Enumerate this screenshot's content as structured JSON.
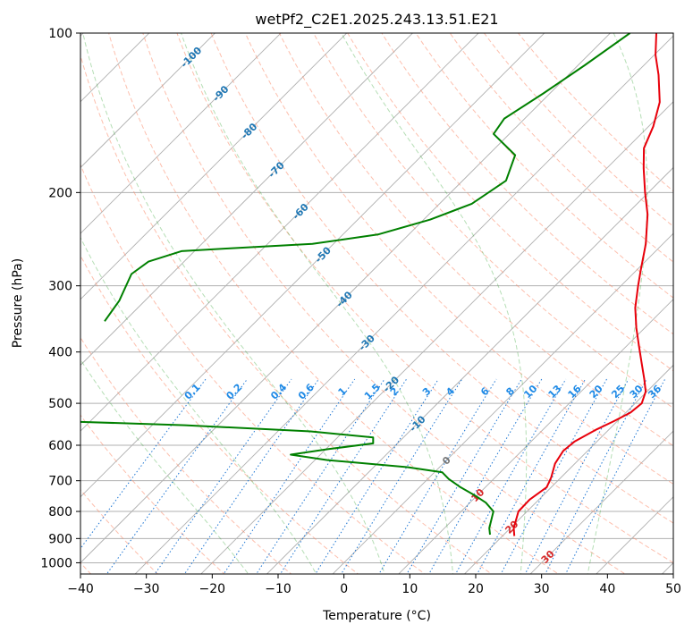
{
  "chart_data": {
    "type": "line",
    "subtype": "skew-t log-p diagram",
    "title": "wetPf2_C2E1.2025.243.13.51.E21",
    "xlabel": "Temperature (°C)",
    "ylabel": "Pressure (hPa)",
    "xlim": [
      -40,
      50
    ],
    "ylim": [
      1050,
      100
    ],
    "x_ticks": [
      -40,
      -30,
      -20,
      -10,
      0,
      10,
      20,
      30,
      40,
      50
    ],
    "x_tick_labels": [
      "−40",
      "−30",
      "−20",
      "−10",
      "0",
      "10",
      "20",
      "30",
      "40",
      "50"
    ],
    "y_ticks": [
      100,
      200,
      300,
      400,
      500,
      600,
      700,
      800,
      900,
      1000
    ],
    "y_tick_labels": [
      "100",
      "200",
      "300",
      "400",
      "500",
      "600",
      "700",
      "800",
      "900",
      "1000"
    ],
    "grid": true,
    "series": [
      {
        "name": "Temperature",
        "color": "#e8000b",
        "points": [
          {
            "p": 890,
            "t": 21.8
          },
          {
            "p": 860,
            "t": 20.5
          },
          {
            "p": 800,
            "t": 18.7
          },
          {
            "p": 760,
            "t": 18.6
          },
          {
            "p": 720,
            "t": 19.3
          },
          {
            "p": 690,
            "t": 18.5
          },
          {
            "p": 650,
            "t": 17.0
          },
          {
            "p": 615,
            "t": 16.3
          },
          {
            "p": 590,
            "t": 16.6
          },
          {
            "p": 560,
            "t": 18.1
          },
          {
            "p": 540,
            "t": 19.5
          },
          {
            "p": 520,
            "t": 20.7
          },
          {
            "p": 500,
            "t": 21.0
          },
          {
            "p": 475,
            "t": 19.8
          },
          {
            "p": 450,
            "t": 17.7
          },
          {
            "p": 420,
            "t": 14.9
          },
          {
            "p": 390,
            "t": 11.9
          },
          {
            "p": 360,
            "t": 8.7
          },
          {
            "p": 330,
            "t": 5.5
          },
          {
            "p": 300,
            "t": 2.6
          },
          {
            "p": 280,
            "t": 0.6
          },
          {
            "p": 250,
            "t": -2.6
          },
          {
            "p": 220,
            "t": -6.8
          },
          {
            "p": 200,
            "t": -10.5
          },
          {
            "p": 180,
            "t": -14.4
          },
          {
            "p": 165,
            "t": -17.4
          },
          {
            "p": 150,
            "t": -19.3
          },
          {
            "p": 135,
            "t": -22.0
          },
          {
            "p": 120,
            "t": -26.3
          },
          {
            "p": 110,
            "t": -29.8
          },
          {
            "p": 100,
            "t": -33.0
          }
        ]
      },
      {
        "name": "Dewpoint",
        "color": "#008000",
        "points": [
          {
            "p": 885,
            "t": 17.9
          },
          {
            "p": 860,
            "t": 16.8
          },
          {
            "p": 800,
            "t": 14.9
          },
          {
            "p": 770,
            "t": 12.4
          },
          {
            "p": 745,
            "t": 9.5
          },
          {
            "p": 720,
            "t": 6.2
          },
          {
            "p": 695,
            "t": 3.2
          },
          {
            "p": 675,
            "t": 1.2
          },
          {
            "p": 660,
            "t": -4.9
          },
          {
            "p": 640,
            "t": -18.1
          },
          {
            "p": 625,
            "t": -24.5
          },
          {
            "p": 610,
            "t": -19.6
          },
          {
            "p": 595,
            "t": -13.7
          },
          {
            "p": 580,
            "t": -14.6
          },
          {
            "p": 565,
            "t": -25.0
          },
          {
            "p": 550,
            "t": -45.0
          },
          {
            "p": 540,
            "t": -65.5
          },
          {
            "p": 530,
            "t": -69.4
          },
          {
            "p": 500,
            "t": -75.0
          }
        ]
      }
    ],
    "segments": [
      {
        "name": "Dewpoint (upper)",
        "color": "#008000",
        "points": [
          {
            "p": 350,
            "t": -73.0
          },
          {
            "p": 320,
            "t": -73.9
          },
          {
            "p": 285,
            "t": -76.1
          },
          {
            "p": 270,
            "t": -75.4
          },
          {
            "p": 258,
            "t": -72.0
          },
          {
            "p": 255,
            "t": -65.3
          },
          {
            "p": 250,
            "t": -53.2
          },
          {
            "p": 240,
            "t": -44.7
          },
          {
            "p": 225,
            "t": -39.0
          },
          {
            "p": 210,
            "t": -35.1
          },
          {
            "p": 190,
            "t": -33.4
          },
          {
            "p": 170,
            "t": -35.9
          },
          {
            "p": 155,
            "t": -42.4
          },
          {
            "p": 145,
            "t": -43.1
          },
          {
            "p": 130,
            "t": -41.0
          },
          {
            "p": 115,
            "t": -39.0
          },
          {
            "p": 100,
            "t": -37.0
          }
        ]
      }
    ],
    "dry_adiabat_theta_c": [
      -100,
      -90,
      -80,
      -70,
      -60,
      -50,
      -40,
      -30,
      -20,
      -10,
      0,
      10,
      20,
      30,
      40,
      50,
      60,
      70,
      80,
      90,
      100,
      110,
      120,
      130,
      140,
      150
    ],
    "moist_adiabat_start_c": [
      -10,
      0,
      10,
      20,
      30,
      40
    ],
    "mixing_ratio_gkg": [
      0.1,
      0.2,
      0.4,
      0.6,
      1,
      1.5,
      2,
      3,
      4,
      6,
      8,
      10,
      13,
      16,
      20,
      25,
      30,
      36
    ],
    "isotherm_labels": [
      {
        "text": "-100",
        "p": 111,
        "t": -100
      },
      {
        "text": "-90",
        "p": 130,
        "t": -90
      },
      {
        "text": "-80",
        "p": 153,
        "t": -80
      },
      {
        "text": "-70",
        "p": 181,
        "t": -70
      },
      {
        "text": "-60",
        "p": 217,
        "t": -60
      },
      {
        "text": "-50",
        "p": 262,
        "t": -50
      },
      {
        "text": "-40",
        "p": 318,
        "t": -40
      },
      {
        "text": "-30",
        "p": 384,
        "t": -30
      },
      {
        "text": "-20",
        "p": 460,
        "t": -20
      },
      {
        "text": "-10",
        "p": 546,
        "t": -10
      },
      {
        "text": "0",
        "p": 641,
        "t": 0
      },
      {
        "text": "10",
        "p": 745,
        "t": 10
      },
      {
        "text": "20",
        "p": 856,
        "t": 20
      },
      {
        "text": "30",
        "p": 974,
        "t": 30
      },
      {
        "text": "40",
        "p": 1100,
        "t": 40
      }
    ]
  }
}
